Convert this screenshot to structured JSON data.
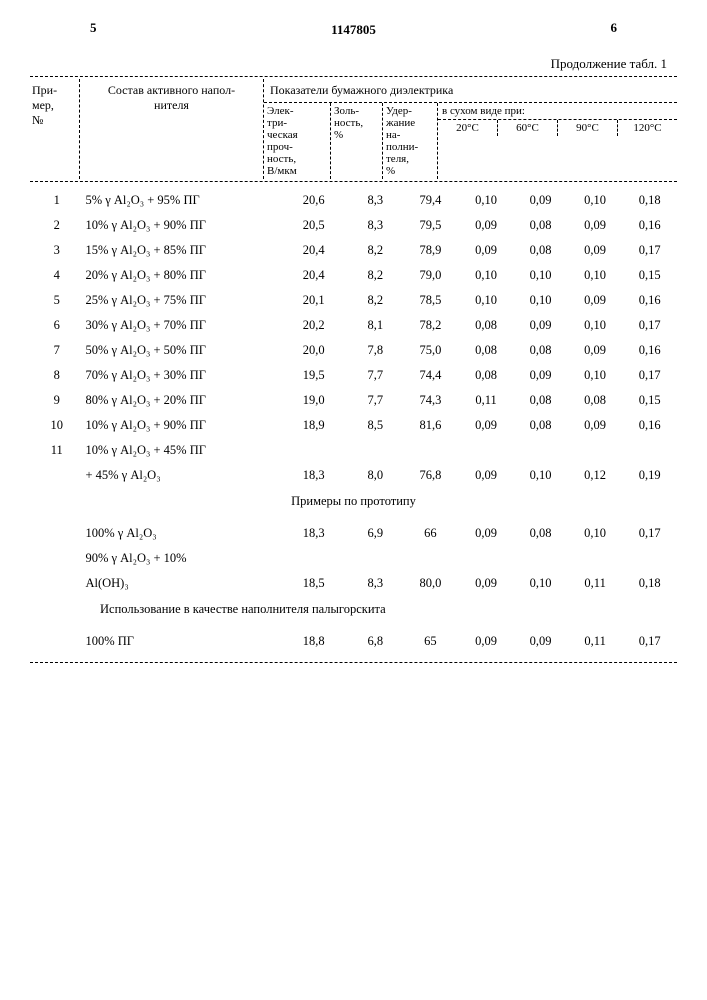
{
  "page": {
    "left_num": "5",
    "right_num": "6",
    "doc_number": "1147805",
    "continuation": "Продолжение табл. 1"
  },
  "headers": {
    "primer": "При-\nмер,\n№",
    "sostav": "Состав активного напол-\nнителя",
    "pokaz": "Показатели бумажного диэлектрика",
    "elektr": "Элек-\nтри-\nческая\nпроч-\nность,\nВ/мкм",
    "zol": "Золь-\nность,\n%",
    "uder": "Удер-\nжание\nна-\nполни-\nтеля,\n%",
    "dry": "в сухом виде при:",
    "t20": "20°С",
    "t60": "60°С",
    "t90": "90°С",
    "t120": "120°С"
  },
  "rows": [
    {
      "n": "1",
      "s": "5% γ Al₂O₃ + 95% ПГ",
      "e": "20,6",
      "z": "8,3",
      "u": "79,4",
      "t20": "0,10",
      "t60": "0,09",
      "t90": "0,10",
      "t120": "0,18"
    },
    {
      "n": "2",
      "s": "10% γ Al₂O₃ + 90% ПГ",
      "e": "20,5",
      "z": "8,3",
      "u": "79,5",
      "t20": "0,09",
      "t60": "0,08",
      "t90": "0,09",
      "t120": "0,16"
    },
    {
      "n": "3",
      "s": "15% γ Al₂O₃ + 85% ПГ",
      "e": "20,4",
      "z": "8,2",
      "u": "78,9",
      "t20": "0,09",
      "t60": "0,08",
      "t90": "0,09",
      "t120": "0,17"
    },
    {
      "n": "4",
      "s": "20% γ Al₂O₃ + 80% ПГ",
      "e": "20,4",
      "z": "8,2",
      "u": "79,0",
      "t20": "0,10",
      "t60": "0,10",
      "t90": "0,10",
      "t120": "0,15"
    },
    {
      "n": "5",
      "s": "25% γ Al₂O₃ + 75% ПГ",
      "e": "20,1",
      "z": "8,2",
      "u": "78,5",
      "t20": "0,10",
      "t60": "0,10",
      "t90": "0,09",
      "t120": "0,16"
    },
    {
      "n": "6",
      "s": "30% γ Al₂O₃ + 70% ПГ",
      "e": "20,2",
      "z": "8,1",
      "u": "78,2",
      "t20": "0,08",
      "t60": "0,09",
      "t90": "0,10",
      "t120": "0,17"
    },
    {
      "n": "7",
      "s": "50% γ Al₂O₃ + 50% ПГ",
      "e": "20,0",
      "z": "7,8",
      "u": "75,0",
      "t20": "0,08",
      "t60": "0,08",
      "t90": "0,09",
      "t120": "0,16"
    },
    {
      "n": "8",
      "s": "70% γ Al₂O₃ + 30% ПГ",
      "e": "19,5",
      "z": "7,7",
      "u": "74,4",
      "t20": "0,08",
      "t60": "0,09",
      "t90": "0,10",
      "t120": "0,17"
    },
    {
      "n": "9",
      "s": "80% γ Al₂O₃ + 20% ПГ",
      "e": "19,0",
      "z": "7,7",
      "u": "74,3",
      "t20": "0,11",
      "t60": "0,08",
      "t90": "0,08",
      "t120": "0,15"
    },
    {
      "n": "10",
      "s": "10% γ Al₂O₃ + 90% ПГ",
      "e": "18,9",
      "z": "8,5",
      "u": "81,6",
      "t20": "0,09",
      "t60": "0,08",
      "t90": "0,09",
      "t120": "0,16"
    },
    {
      "n": "11",
      "s": "10% γ Al₂O₃ + 45% ПГ",
      "e": "",
      "z": "",
      "u": "",
      "t20": "",
      "t60": "",
      "t90": "",
      "t120": ""
    },
    {
      "n": "",
      "s": "+ 45% γ Al₂O₃",
      "e": "18,3",
      "z": "8,0",
      "u": "76,8",
      "t20": "0,09",
      "t60": "0,10",
      "t90": "0,12",
      "t120": "0,19"
    }
  ],
  "section1": "Примеры по прототипу",
  "proto_rows": [
    {
      "n": "",
      "s": "100% γ Al₂O₃",
      "e": "18,3",
      "z": "6,9",
      "u": "66",
      "t20": "0,09",
      "t60": "0,08",
      "t90": "0,10",
      "t120": "0,17"
    },
    {
      "n": "",
      "s": "90% γ Al₂O₃ + 10%",
      "e": "",
      "z": "",
      "u": "",
      "t20": "",
      "t60": "",
      "t90": "",
      "t120": ""
    },
    {
      "n": "",
      "s": "Al(OH)₃",
      "e": "18,5",
      "z": "8,3",
      "u": "80,0",
      "t20": "0,09",
      "t60": "0,10",
      "t90": "0,11",
      "t120": "0,18"
    }
  ],
  "section2": "Использование в качестве наполнителя палыгорскита",
  "paly_rows": [
    {
      "n": "",
      "s": "100% ПГ",
      "e": "18,8",
      "z": "6,8",
      "u": "65",
      "t20": "0,09",
      "t60": "0,09",
      "t90": "0,11",
      "t120": "0,17"
    }
  ]
}
